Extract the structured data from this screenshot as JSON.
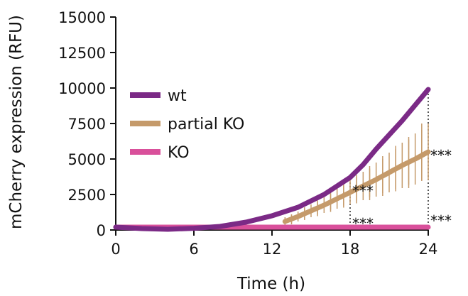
{
  "chart_data": {
    "type": "line",
    "xlabel": "Time (h)",
    "ylabel": "mCherry expression (RFU)",
    "xlim": [
      0,
      24
    ],
    "ylim": [
      0,
      15000
    ],
    "x_ticks": [
      "0",
      "6",
      "12",
      "18",
      "24"
    ],
    "y_ticks": [
      "0",
      "2500",
      "5000",
      "7500",
      "10000",
      "12500",
      "15000"
    ],
    "grid": false,
    "legend_position": "left",
    "series": [
      {
        "name": "wt",
        "color": "#7b2a86",
        "x": [
          0,
          2,
          4,
          6,
          8,
          10,
          12,
          14,
          16,
          17,
          18,
          19,
          20,
          22,
          24
        ],
        "y": [
          200,
          100,
          50,
          120,
          250,
          550,
          1000,
          1600,
          2500,
          3100,
          3700,
          4600,
          5700,
          7700,
          9900
        ]
      },
      {
        "name": "partial KO",
        "color": "#c59a6a",
        "x": [
          13,
          14,
          15,
          16,
          17,
          18,
          19,
          20,
          21,
          22,
          23,
          24
        ],
        "y": [
          600,
          950,
          1350,
          1750,
          2200,
          2650,
          3100,
          3550,
          4050,
          4550,
          5000,
          5500
        ],
        "error": [
          300,
          350,
          450,
          550,
          700,
          850,
          1000,
          1200,
          1400,
          1600,
          1800,
          2000
        ]
      },
      {
        "name": "KO",
        "color": "#d9509b",
        "x": [
          0,
          24
        ],
        "y": [
          200,
          200
        ]
      }
    ],
    "annotations": [
      {
        "text": "***",
        "x": 18,
        "y": 3000
      },
      {
        "text": "***",
        "x": 18,
        "y": 700
      },
      {
        "text": "***",
        "x": 24,
        "y": 5500
      },
      {
        "text": "***",
        "x": 24,
        "y": 900
      }
    ],
    "reference_lines": [
      {
        "x": 18,
        "y_from": 0,
        "y_to": 3700
      },
      {
        "x": 24,
        "y_from": 0,
        "y_to": 9900
      }
    ]
  }
}
